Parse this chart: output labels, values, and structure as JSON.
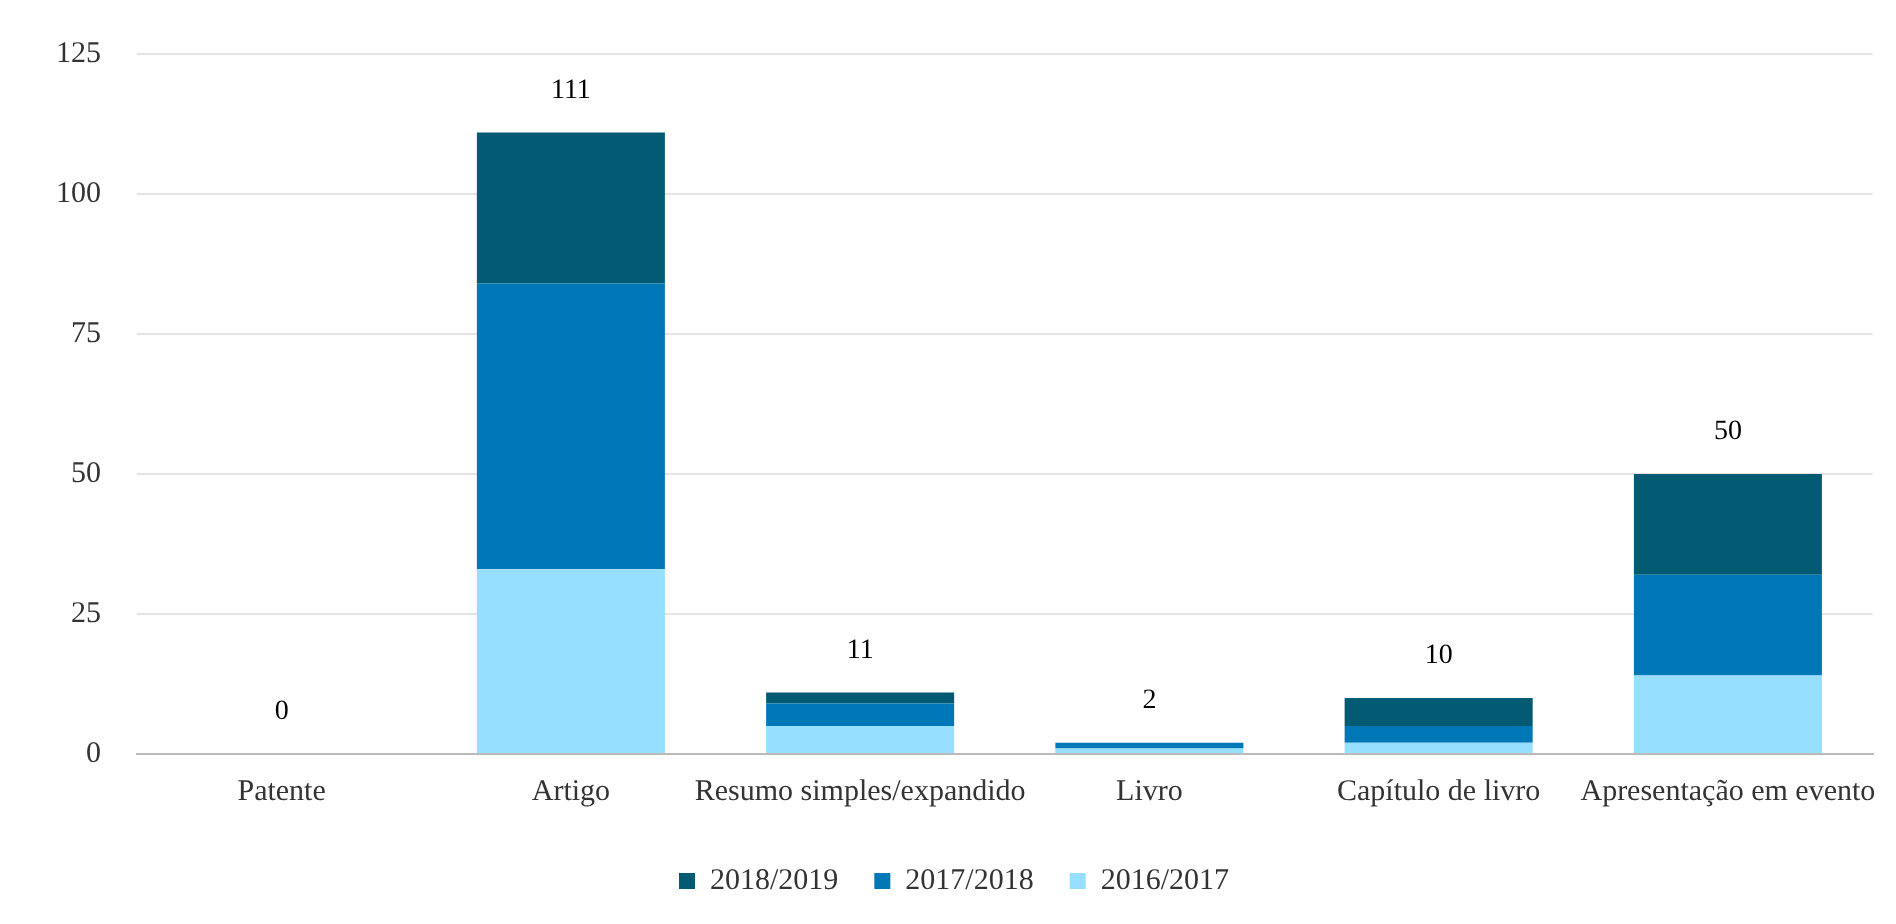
{
  "chart_data": {
    "type": "bar",
    "stacked": true,
    "categories": [
      "Patente",
      "Artigo",
      "Resumo simples/expandido",
      "Livro",
      "Capítulo de livro",
      "Apresentação em evento"
    ],
    "series": [
      {
        "name": "2016/2017",
        "color": "#97dfff",
        "values": [
          0,
          33,
          5,
          1,
          2,
          14
        ]
      },
      {
        "name": "2017/2018",
        "color": "#0077b6",
        "values": [
          0,
          51,
          4,
          1,
          3,
          18
        ]
      },
      {
        "name": "2018/2019",
        "color": "#025a73",
        "values": [
          0,
          27,
          2,
          0,
          5,
          18
        ]
      }
    ],
    "totals": [
      "0",
      "111",
      "11",
      "2",
      "10",
      "50"
    ],
    "ylim": [
      0,
      125
    ],
    "yticks": [
      0,
      25,
      50,
      75,
      100,
      125
    ],
    "grid": "y",
    "legend": "bottom"
  }
}
